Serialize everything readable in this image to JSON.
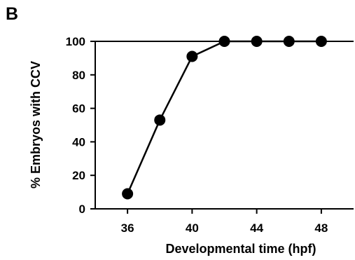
{
  "panel_label": "B",
  "chart_data": {
    "type": "line",
    "title": "",
    "xlabel": "Developmental time (hpf)",
    "ylabel": "% Embryos  with CCV",
    "x": [
      36,
      38,
      40,
      42,
      44,
      46,
      48
    ],
    "series": [
      {
        "values": [
          9,
          53,
          91,
          100,
          100,
          100,
          100
        ]
      }
    ],
    "xlim": [
      34,
      50
    ],
    "ylim": [
      0,
      100
    ],
    "xticks": [
      36,
      40,
      44,
      48
    ],
    "yticks": [
      0,
      20,
      40,
      60,
      80,
      100
    ],
    "grid": false,
    "legend": "none",
    "colors": {
      "line": "#000000",
      "marker": "#000000"
    }
  }
}
